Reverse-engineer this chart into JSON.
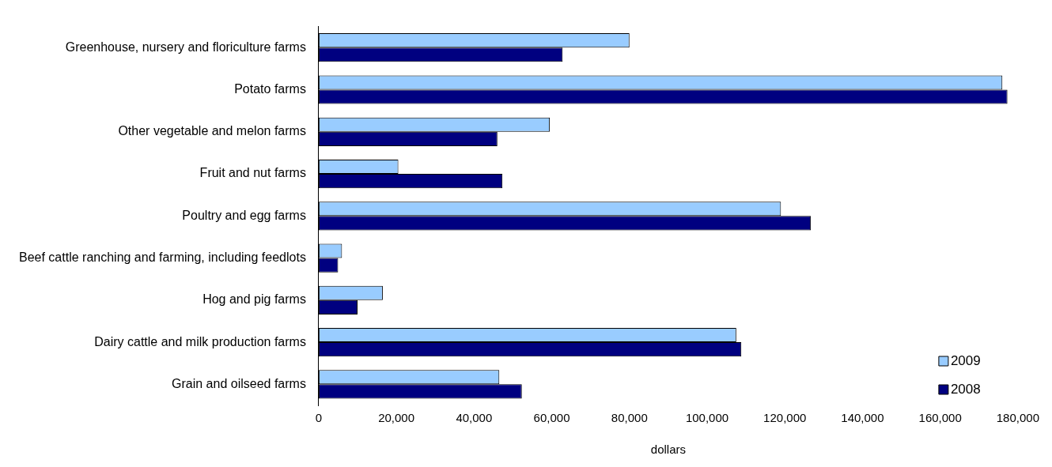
{
  "chart_data": {
    "type": "bar",
    "orientation": "horizontal",
    "xlabel": "dollars",
    "categories": [
      "Greenhouse, nursery and floriculture farms",
      "Potato farms",
      "Other vegetable and melon farms",
      "Fruit and nut farms",
      "Poultry and egg farms",
      "Beef cattle ranching and farming, including feedlots",
      "Hog and pig farms",
      "Dairy cattle and milk production farms",
      "Grain and oilseed farms"
    ],
    "series": [
      {
        "name": "2009",
        "color": "#99ccff",
        "values": [
          80000,
          176000,
          59500,
          20500,
          119000,
          6000,
          16500,
          107500,
          46500
        ]
      },
      {
        "name": "2008",
        "color": "#000080",
        "values": [
          62800,
          177300,
          46000,
          47300,
          126700,
          5000,
          10000,
          108800,
          52300
        ]
      }
    ],
    "xlim": [
      0,
      180000
    ],
    "xticks": [
      {
        "value": 0,
        "label": "0"
      },
      {
        "value": 20000,
        "label": "20,000"
      },
      {
        "value": 40000,
        "label": "40,000"
      },
      {
        "value": 60000,
        "label": "60,000"
      },
      {
        "value": 80000,
        "label": "80,000"
      },
      {
        "value": 100000,
        "label": "100,000"
      },
      {
        "value": 120000,
        "label": "120,000"
      },
      {
        "value": 140000,
        "label": "140,000"
      },
      {
        "value": 160000,
        "label": "160,000"
      },
      {
        "value": 180000,
        "label": "180,000"
      }
    ],
    "grid": false,
    "legend": "bottom right"
  }
}
